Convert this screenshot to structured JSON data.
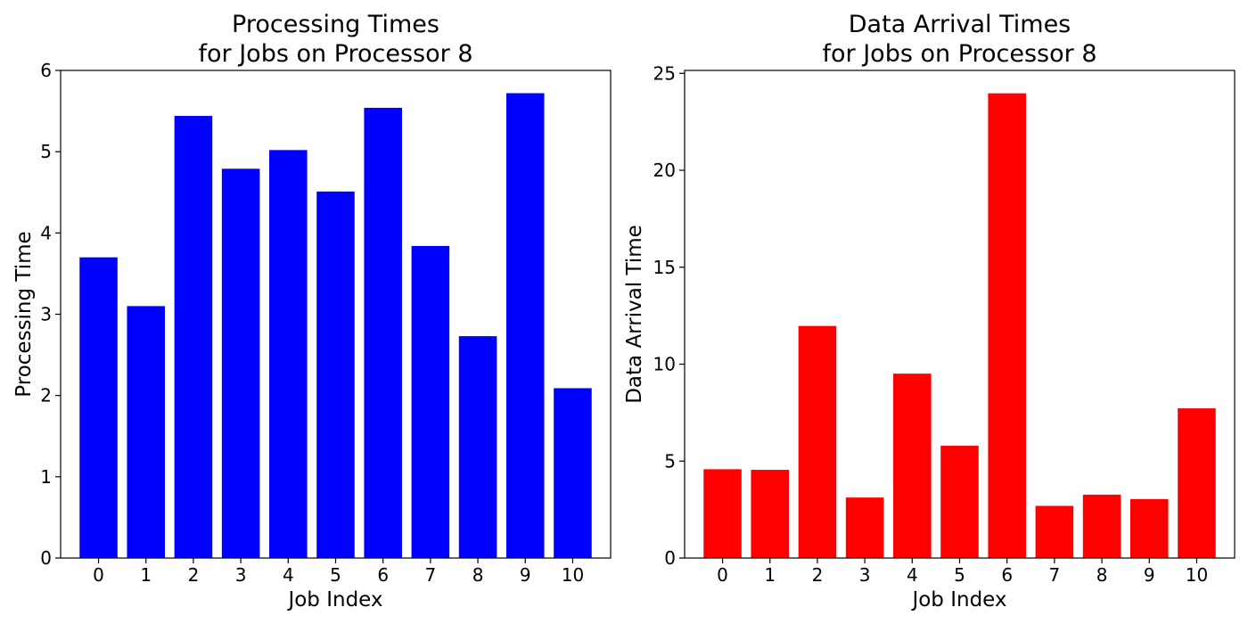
{
  "chart_data": [
    {
      "type": "bar",
      "title": [
        "Processing Times",
        "for Jobs on Processor 8"
      ],
      "xlabel": "Job Index",
      "ylabel": "Processing Time",
      "categories": [
        "0",
        "1",
        "2",
        "3",
        "4",
        "5",
        "6",
        "7",
        "8",
        "9",
        "10"
      ],
      "values": [
        3.7,
        3.1,
        5.44,
        4.79,
        5.02,
        4.51,
        5.54,
        3.84,
        2.73,
        5.72,
        2.09
      ],
      "ylim": [
        0,
        6
      ],
      "yticks": [
        0,
        1,
        2,
        3,
        4,
        5,
        6
      ],
      "color": "#0000ff",
      "grid": false,
      "legend": "none"
    },
    {
      "type": "bar",
      "title": [
        "Data Arrival Times",
        "for Jobs on Processor 8"
      ],
      "xlabel": "Job Index",
      "ylabel": "Data Arrival Time",
      "categories": [
        "0",
        "1",
        "2",
        "3",
        "4",
        "5",
        "6",
        "7",
        "8",
        "9",
        "10"
      ],
      "values": [
        4.58,
        4.55,
        11.97,
        3.12,
        9.51,
        5.79,
        23.97,
        2.69,
        3.27,
        3.04,
        7.72
      ],
      "ylim": [
        0,
        25.15
      ],
      "yticks": [
        0,
        5,
        10,
        15,
        20,
        25
      ],
      "color": "#ff0000",
      "grid": false,
      "legend": "none"
    }
  ]
}
